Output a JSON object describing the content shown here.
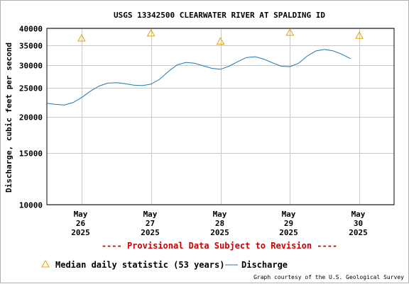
{
  "chart_data": {
    "type": "line",
    "title": "USGS 13342500 CLEARWATER RIVER AT SPALDING ID",
    "ylabel": "Discharge, cubic feet per second",
    "xlabel": "",
    "y_scale": "log",
    "ylim": [
      10000,
      40000
    ],
    "y_ticks": [
      10000,
      15000,
      20000,
      25000,
      30000,
      35000,
      40000
    ],
    "y_tick_labels": [
      "10000",
      "15000",
      "20000",
      "25000",
      "30000",
      "35000",
      "40000"
    ],
    "xlim": [
      "2025-05-25T12:00",
      "2025-05-30T12:00"
    ],
    "x_ticks": [
      {
        "x": "2025-05-26",
        "label_lines": [
          "May",
          "26",
          "2025"
        ]
      },
      {
        "x": "2025-05-27",
        "label_lines": [
          "May",
          "27",
          "2025"
        ]
      },
      {
        "x": "2025-05-28",
        "label_lines": [
          "May",
          "28",
          "2025"
        ]
      },
      {
        "x": "2025-05-29",
        "label_lines": [
          "May",
          "29",
          "2025"
        ]
      },
      {
        "x": "2025-05-30",
        "label_lines": [
          "May",
          "30",
          "2025"
        ]
      }
    ],
    "grid": true,
    "series": [
      {
        "name": "Discharge",
        "style": "line",
        "color": "#1f77b4",
        "points": [
          {
            "x": "2025-05-25T12:00",
            "y": 22200
          },
          {
            "x": "2025-05-25T15:00",
            "y": 22000
          },
          {
            "x": "2025-05-25T18:00",
            "y": 21900
          },
          {
            "x": "2025-05-25T21:00",
            "y": 22300
          },
          {
            "x": "2025-05-26T00:00",
            "y": 23200
          },
          {
            "x": "2025-05-26T03:00",
            "y": 24400
          },
          {
            "x": "2025-05-26T06:00",
            "y": 25400
          },
          {
            "x": "2025-05-26T09:00",
            "y": 26000
          },
          {
            "x": "2025-05-26T12:00",
            "y": 26100
          },
          {
            "x": "2025-05-26T15:00",
            "y": 25900
          },
          {
            "x": "2025-05-26T18:00",
            "y": 25600
          },
          {
            "x": "2025-05-26T21:00",
            "y": 25500
          },
          {
            "x": "2025-05-27T00:00",
            "y": 25800
          },
          {
            "x": "2025-05-27T03:00",
            "y": 26800
          },
          {
            "x": "2025-05-27T06:00",
            "y": 28500
          },
          {
            "x": "2025-05-27T09:00",
            "y": 30000
          },
          {
            "x": "2025-05-27T12:00",
            "y": 30600
          },
          {
            "x": "2025-05-27T15:00",
            "y": 30400
          },
          {
            "x": "2025-05-27T18:00",
            "y": 29800
          },
          {
            "x": "2025-05-27T21:00",
            "y": 29200
          },
          {
            "x": "2025-05-28T00:00",
            "y": 29000
          },
          {
            "x": "2025-05-28T03:00",
            "y": 29700
          },
          {
            "x": "2025-05-28T06:00",
            "y": 30800
          },
          {
            "x": "2025-05-28T09:00",
            "y": 31800
          },
          {
            "x": "2025-05-28T12:00",
            "y": 32000
          },
          {
            "x": "2025-05-28T15:00",
            "y": 31400
          },
          {
            "x": "2025-05-28T18:00",
            "y": 30500
          },
          {
            "x": "2025-05-28T21:00",
            "y": 29700
          },
          {
            "x": "2025-05-29T00:00",
            "y": 29600
          },
          {
            "x": "2025-05-29T03:00",
            "y": 30400
          },
          {
            "x": "2025-05-29T06:00",
            "y": 32200
          },
          {
            "x": "2025-05-29T09:00",
            "y": 33500
          },
          {
            "x": "2025-05-29T12:00",
            "y": 33900
          },
          {
            "x": "2025-05-29T15:00",
            "y": 33500
          },
          {
            "x": "2025-05-29T18:00",
            "y": 32600
          },
          {
            "x": "2025-05-29T21:00",
            "y": 31500
          }
        ]
      },
      {
        "name": "Median daily statistic (53 years)",
        "style": "triangle-markers",
        "color": "#e8a000",
        "points": [
          {
            "x": "2025-05-26",
            "y": 37000
          },
          {
            "x": "2025-05-27",
            "y": 38500
          },
          {
            "x": "2025-05-28",
            "y": 36100
          },
          {
            "x": "2025-05-29",
            "y": 38700
          },
          {
            "x": "2025-05-30",
            "y": 37800
          }
        ]
      }
    ],
    "legend": {
      "placement": "bottom-left",
      "entries": [
        {
          "label": "Median daily statistic (53 years)",
          "symbol": "triangle"
        },
        {
          "label": "Discharge",
          "symbol": "line"
        }
      ]
    },
    "annotations": [
      {
        "text": "---- Provisional Data Subject to Revision ----",
        "color": "#cc0000"
      }
    ],
    "credit": "Graph courtesy of the U.S. Geological Survey"
  }
}
